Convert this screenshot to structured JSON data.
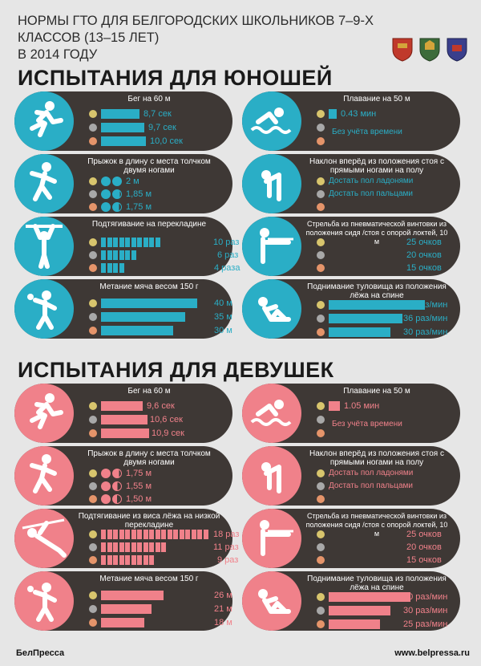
{
  "header": {
    "line1": "НОРМЫ ГТО ДЛЯ БЕЛГОРОДСКИХ ШКОЛЬНИКОВ 7–9-Х КЛАССОВ (13–15 ЛЕТ)",
    "line2": "В 2014 ГОДУ"
  },
  "colors": {
    "boys_accent": "#2aaec6",
    "girls_accent": "#f0818a",
    "card_bg": "#3e3835",
    "gold": "#d8c56d",
    "silver": "#a8a8a8",
    "bronze": "#e5946a"
  },
  "boys": {
    "title": "ИСПЫТАНИЯ ДЛЯ ЮНОШЕЙ",
    "run_title": "Бег на 60 м",
    "run": [
      "8,7 сек",
      "9,7 сек",
      "10,0 сек"
    ],
    "swim_title": "Плавание на 50 м",
    "swim_value": "0.43 мин",
    "swim_note": "Без учёта времени",
    "jump_title": "Прыжок в длину с места толчком двумя ногами",
    "jump": [
      "2 м",
      "1,85 м",
      "1,75 м"
    ],
    "bend_title": "Наклон вперёд из положения стоя с прямыми ногами на полу",
    "bend": [
      "Достать пол ладонями",
      "Достать пол пальцами"
    ],
    "pullup_title": "Подтягивание на перекладине",
    "pullup": [
      "10 раз",
      "6 раз",
      "4 раза"
    ],
    "pullup_counts": [
      10,
      6,
      4
    ],
    "shoot_title": "Стрельба из пневматической винтовки из положения сидя /стоя с опорой локтей, 10 м",
    "shoot": [
      "25 очков",
      "20 очков",
      "15 очков"
    ],
    "throw_title": "Метание мяча весом 150 г",
    "throw": [
      "40 м",
      "35 м",
      "30 м"
    ],
    "throw_values": [
      40,
      35,
      30
    ],
    "situp_title": "Поднимание туловища из положения лёжа на спине",
    "situp": [
      "47 раз/мин",
      "36 раз/мин",
      "30 раз/мин"
    ],
    "situp_values": [
      47,
      36,
      30
    ]
  },
  "girls": {
    "title": "ИСПЫТАНИЯ ДЛЯ ДЕВУШЕК",
    "run_title": "Бег на 60 м",
    "run": [
      "9,6 сек",
      "10,6 сек",
      "10,9 сек"
    ],
    "swim_title": "Плавание на 50 м",
    "swim_value": "1.05 мин",
    "swim_note": "Без учёта времени",
    "jump_title": "Прыжок в длину с места толчком двумя ногами",
    "jump": [
      "1,75 м",
      "1,55 м",
      "1,50 м"
    ],
    "bend_title": "Наклон вперёд из положения стоя с прямыми ногами на полу",
    "bend": [
      "Достать пол ладонями",
      "Достать пол пальцами"
    ],
    "pullup_title": "Подтягивание из виса лёжа на низкой перекладине",
    "pullup": [
      "18 раз",
      "11 раз",
      "9 раз"
    ],
    "pullup_counts": [
      18,
      11,
      9
    ],
    "shoot_title": "Стрельба из пневматической винтовки из положения сидя /стоя с опорой локтей, 10 м",
    "shoot": [
      "25 очков",
      "20 очков",
      "15 очков"
    ],
    "throw_title": "Метание мяча весом 150 г",
    "throw": [
      "26 м",
      "21 м",
      "18 м"
    ],
    "throw_values": [
      26,
      21,
      18
    ],
    "situp_title": "Поднимание туловища из положения лёжа на спине",
    "situp": [
      "40 раз/мин",
      "30 раз/мин",
      "25 раз/мин"
    ],
    "situp_values": [
      40,
      30,
      25
    ]
  },
  "footer": {
    "left": "БелПресса",
    "right": "www.belpressa.ru"
  }
}
